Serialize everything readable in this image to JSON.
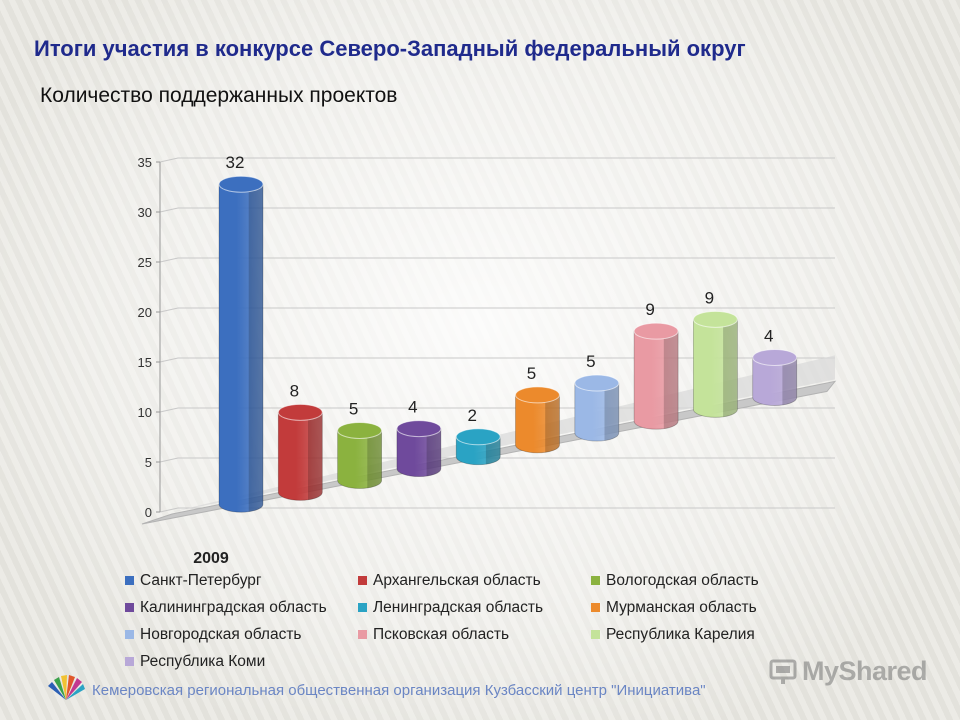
{
  "title": "Итоги участия в конкурсе Северо-Западный федеральный округ",
  "subtitle": "Количество поддержанных проектов",
  "chart_data": {
    "type": "bar",
    "categories": [
      "2009"
    ],
    "series": [
      {
        "name": "Санкт-Петербург",
        "values": [
          32
        ],
        "color": "#3c6fbf"
      },
      {
        "name": "Архангельская область",
        "values": [
          8
        ],
        "color": "#c23b3b"
      },
      {
        "name": "Вологодская область",
        "values": [
          5
        ],
        "color": "#8bb23f"
      },
      {
        "name": "Калининградская область",
        "values": [
          4
        ],
        "color": "#6f4a9c"
      },
      {
        "name": "Ленинградская область",
        "values": [
          2
        ],
        "color": "#2aa3c4"
      },
      {
        "name": "Мурманская область",
        "values": [
          5
        ],
        "color": "#ec8a2c"
      },
      {
        "name": "Новгородская область",
        "values": [
          5
        ],
        "color": "#9bb8e6"
      },
      {
        "name": "Псковская область",
        "values": [
          9
        ],
        "color": "#e99aa3"
      },
      {
        "name": "Республика Карелия",
        "values": [
          9
        ],
        "color": "#c4e39a"
      },
      {
        "name": "Республика Коми",
        "values": [
          4
        ],
        "color": "#b8a8d8"
      }
    ],
    "yticks": [
      "0",
      "5",
      "10",
      "15",
      "20",
      "25",
      "30",
      "35"
    ],
    "ylim": [
      0,
      35
    ],
    "grid": true,
    "legend_position": "bottom",
    "style": "3d-cylinder"
  },
  "footer": {
    "text": "Кемеровская региональная общественная организация Кузбасский центр \"Инициатива\""
  },
  "watermark": {
    "text": "MyShared"
  }
}
